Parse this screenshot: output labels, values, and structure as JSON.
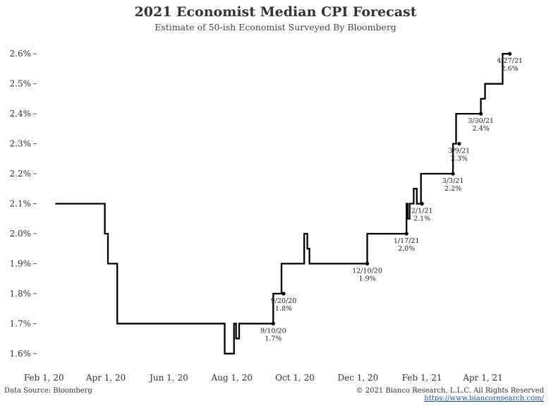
{
  "chart_data": {
    "type": "line",
    "title": "2021 Economist Median CPI Forecast",
    "subtitle": "Estimate of 50-ish Economist Surveyed By Bloomberg",
    "xlabel": "",
    "ylabel": "",
    "ylim": [
      1.55,
      2.65
    ],
    "y_ticks": [
      1.6,
      1.7,
      1.8,
      1.9,
      2.0,
      2.1,
      2.2,
      2.3,
      2.4,
      2.5,
      2.6
    ],
    "y_tick_labels": [
      "1.6%",
      "1.7%",
      "1.8%",
      "1.9%",
      "2.0%",
      "2.1%",
      "2.2%",
      "2.3%",
      "2.4%",
      "2.5%",
      "2.6%"
    ],
    "xlim": [
      "2020-01-25",
      "2021-05-28"
    ],
    "x_ticks": [
      "2020-02-01",
      "2020-04-01",
      "2020-06-01",
      "2020-08-01",
      "2020-10-01",
      "2020-12-01",
      "2021-02-01",
      "2021-04-01"
    ],
    "x_tick_labels": [
      "Feb 1, 20",
      "Apr 1, 20",
      "Jun 1, 20",
      "Aug 1, 20",
      "Oct 1, 20",
      "Dec 1, 20",
      "Feb 1, 21",
      "Apr 1, 21"
    ],
    "grid": false,
    "legend": "none",
    "series_color": "#000000",
    "series": [
      {
        "step": true,
        "points": [
          [
            "2020-02-12",
            2.1
          ],
          [
            "2020-03-31",
            2.0
          ],
          [
            "2020-04-03",
            1.9
          ],
          [
            "2020-04-12",
            1.7
          ],
          [
            "2020-07-25",
            1.6
          ],
          [
            "2020-08-03",
            1.7
          ],
          [
            "2020-08-05",
            1.65
          ],
          [
            "2020-08-08",
            1.7
          ],
          [
            "2020-09-10",
            1.8
          ],
          [
            "2020-09-18",
            1.9
          ],
          [
            "2020-10-10",
            2.0
          ],
          [
            "2020-10-13",
            1.95
          ],
          [
            "2020-10-15",
            1.9
          ],
          [
            "2020-12-10",
            2.0
          ],
          [
            "2021-01-17",
            2.1
          ],
          [
            "2021-01-18",
            2.05
          ],
          [
            "2021-01-20",
            2.1
          ],
          [
            "2021-01-24",
            2.15
          ],
          [
            "2021-01-27",
            2.1
          ],
          [
            "2021-01-31",
            2.2
          ],
          [
            "2021-03-03",
            2.3
          ],
          [
            "2021-03-06",
            2.4
          ],
          [
            "2021-03-30",
            2.45
          ],
          [
            "2021-04-03",
            2.5
          ],
          [
            "2021-04-20",
            2.6
          ],
          [
            "2021-04-27",
            2.6
          ]
        ]
      }
    ],
    "annotations": [
      {
        "date": "9/10/20",
        "value": "1.7%",
        "x": "2020-09-10",
        "y": 1.7
      },
      {
        "date": "9/20/20",
        "value": "1.8%",
        "x": "2020-09-20",
        "y": 1.8
      },
      {
        "date": "12/10/20",
        "value": "1.9%",
        "x": "2020-12-10",
        "y": 1.9
      },
      {
        "date": "1/17/21",
        "value": "2.0%",
        "x": "2021-01-17",
        "y": 2.0
      },
      {
        "date": "2/1/21",
        "value": "2.1%",
        "x": "2021-02-01",
        "y": 2.1
      },
      {
        "date": "3/3/21",
        "value": "2.2%",
        "x": "2021-03-03",
        "y": 2.2
      },
      {
        "date": "3/9/21",
        "value": "2.3%",
        "x": "2021-03-09",
        "y": 2.3
      },
      {
        "date": "3/30/21",
        "value": "2.4%",
        "x": "2021-03-30",
        "y": 2.4
      },
      {
        "date": "4/27/21",
        "value": "2.6%",
        "x": "2021-04-27",
        "y": 2.6
      }
    ]
  },
  "footer": {
    "source": "Data Source: Bloomberg",
    "copyright": "© 2021 Bianco Research, L.L.C. All Rights Reserved",
    "url": "https://www.biancoresearch.com/"
  }
}
